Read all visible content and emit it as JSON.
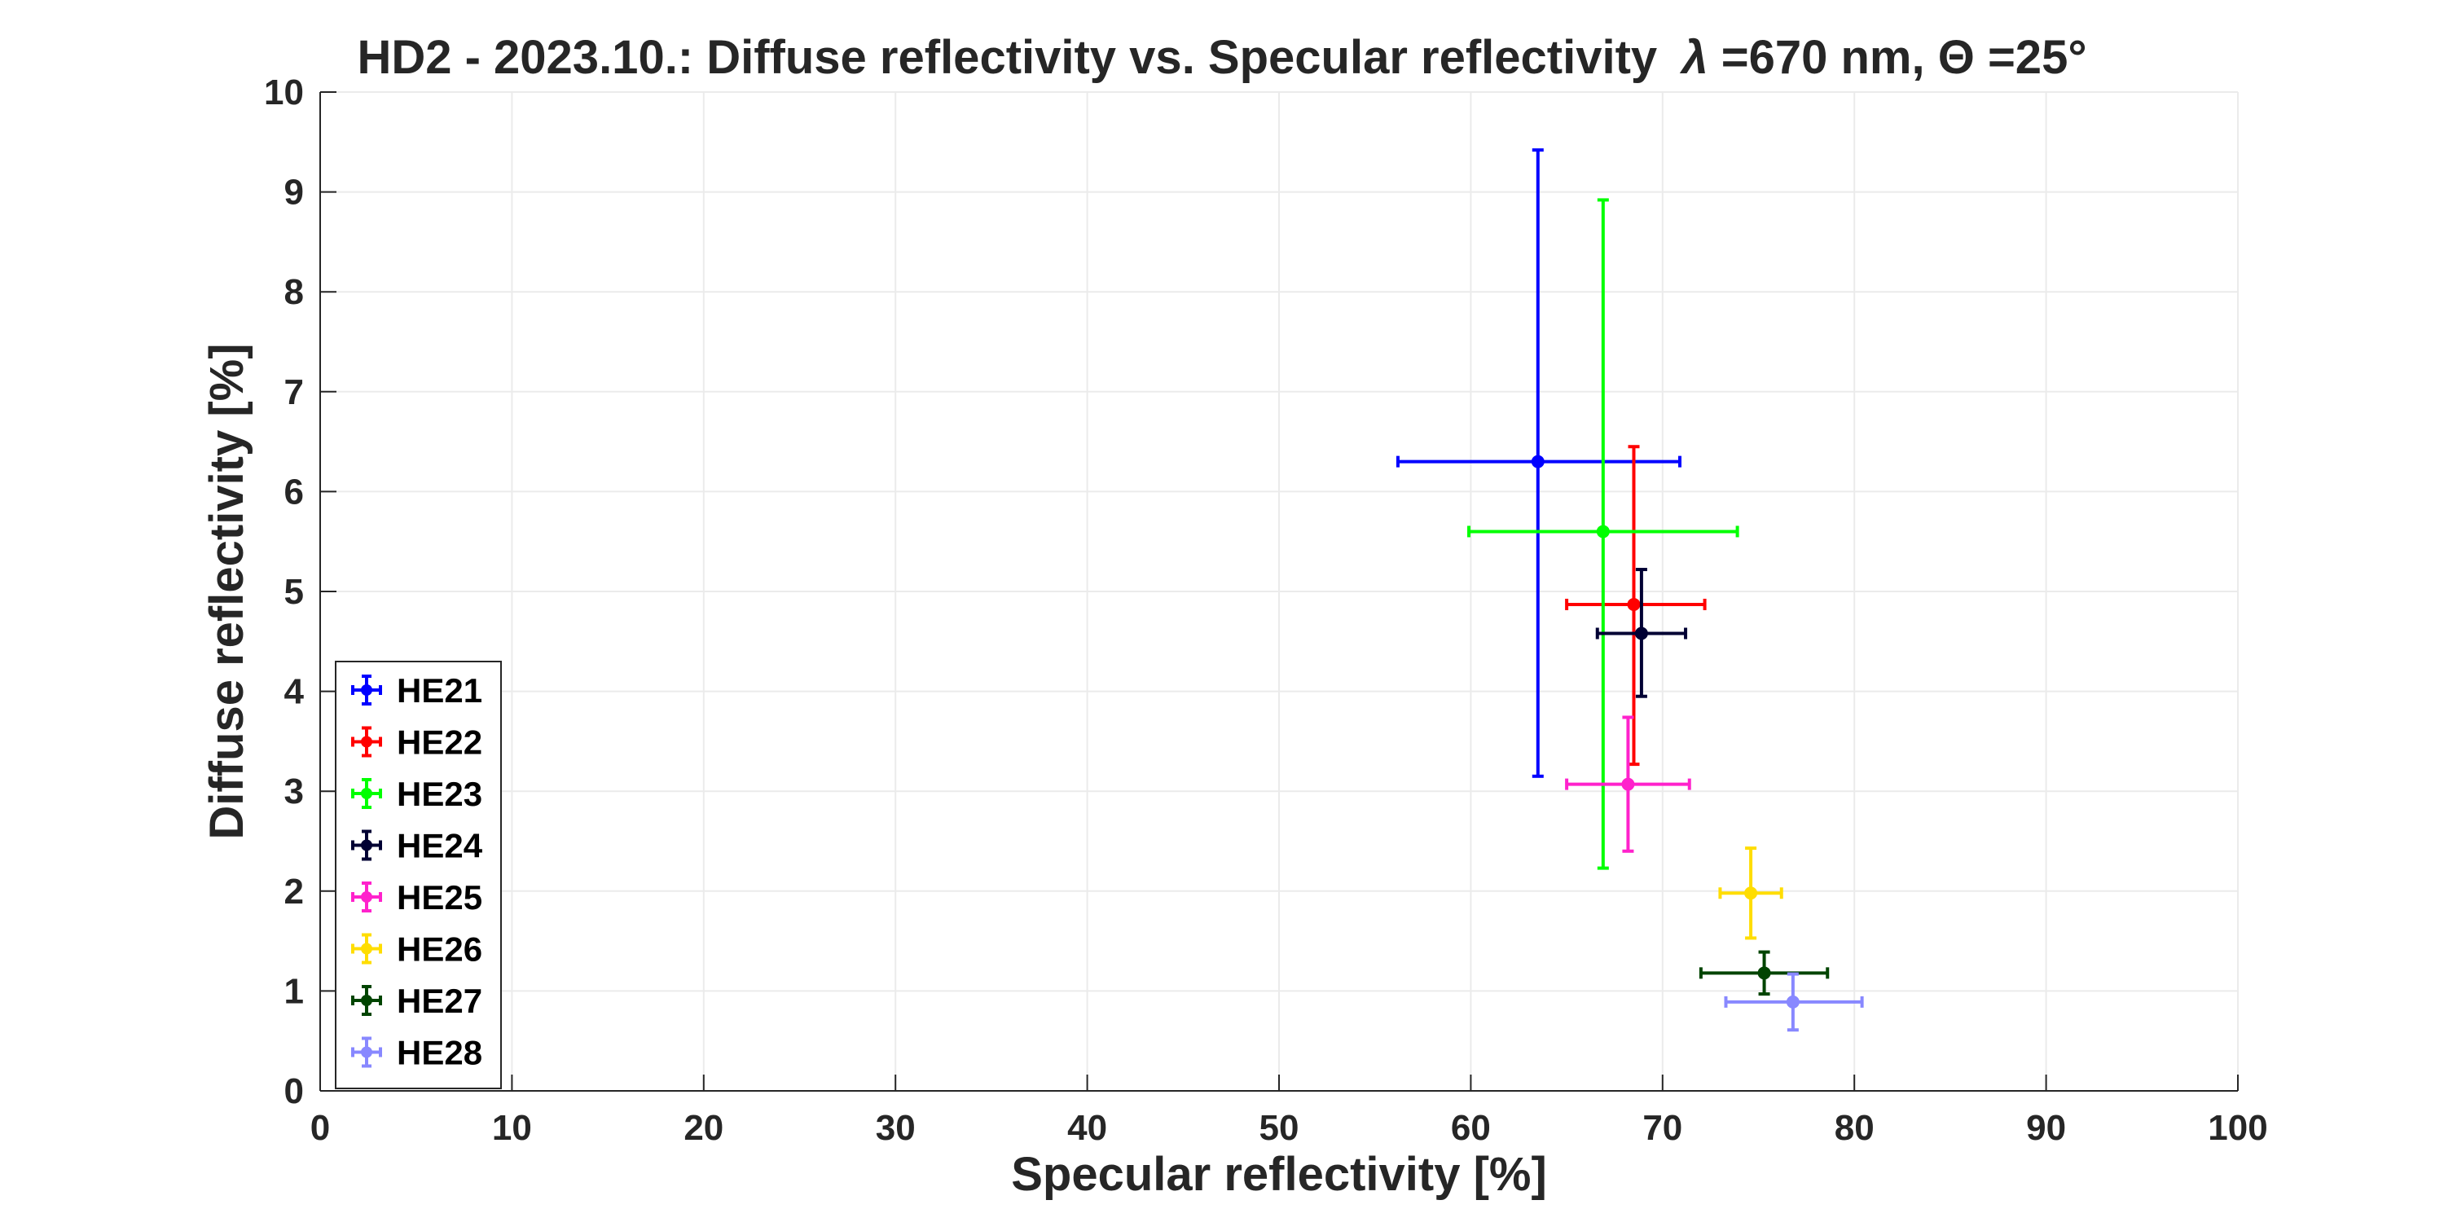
{
  "chart_data": {
    "type": "scatter",
    "title": "HD2 - 2023.10.: Diffuse reflectivity vs. Specular reflectivity",
    "title_params": "=670 nm, ",
    "title_lambda": "λ",
    "title_theta": "Θ",
    "title_angle": "=25°",
    "xlabel": "Specular reflectivity [%]",
    "ylabel": "Diffuse reflectivity [%]",
    "xlim": [
      0,
      100
    ],
    "ylim": [
      0,
      10
    ],
    "xticks": [
      "0",
      "10",
      "20",
      "30",
      "40",
      "50",
      "60",
      "70",
      "80",
      "90",
      "100"
    ],
    "yticks": [
      "0",
      "1",
      "2",
      "3",
      "4",
      "5",
      "6",
      "7",
      "8",
      "9",
      "10"
    ],
    "grid": true,
    "legend_position": "bottom-left",
    "series": [
      {
        "name": "HE21",
        "color": "#0000ff",
        "x": 63.5,
        "y": 6.3,
        "x_err": [
          56.2,
          70.9
        ],
        "y_err": [
          3.15,
          9.42
        ]
      },
      {
        "name": "HE22",
        "color": "#ff0000",
        "x": 68.5,
        "y": 4.87,
        "x_err": [
          65.0,
          72.2
        ],
        "y_err": [
          3.27,
          6.45
        ]
      },
      {
        "name": "HE23",
        "color": "#00ff00",
        "x": 66.9,
        "y": 5.6,
        "x_err": [
          59.9,
          73.9
        ],
        "y_err": [
          2.23,
          8.92
        ]
      },
      {
        "name": "HE24",
        "color": "#000033",
        "x": 68.9,
        "y": 4.58,
        "x_err": [
          66.6,
          71.2
        ],
        "y_err": [
          3.95,
          5.22
        ]
      },
      {
        "name": "HE25",
        "color": "#ff22cc",
        "x": 68.2,
        "y": 3.07,
        "x_err": [
          65.0,
          71.4
        ],
        "y_err": [
          2.4,
          3.74
        ]
      },
      {
        "name": "HE26",
        "color": "#ffdd00",
        "x": 74.6,
        "y": 1.98,
        "x_err": [
          73.0,
          76.2
        ],
        "y_err": [
          1.53,
          2.43
        ]
      },
      {
        "name": "HE27",
        "color": "#004400",
        "x": 75.3,
        "y": 1.18,
        "x_err": [
          72.0,
          78.6
        ],
        "y_err": [
          0.97,
          1.39
        ]
      },
      {
        "name": "HE28",
        "color": "#8888ff",
        "x": 76.8,
        "y": 0.89,
        "x_err": [
          73.3,
          80.4
        ],
        "y_err": [
          0.61,
          1.17
        ]
      }
    ]
  }
}
